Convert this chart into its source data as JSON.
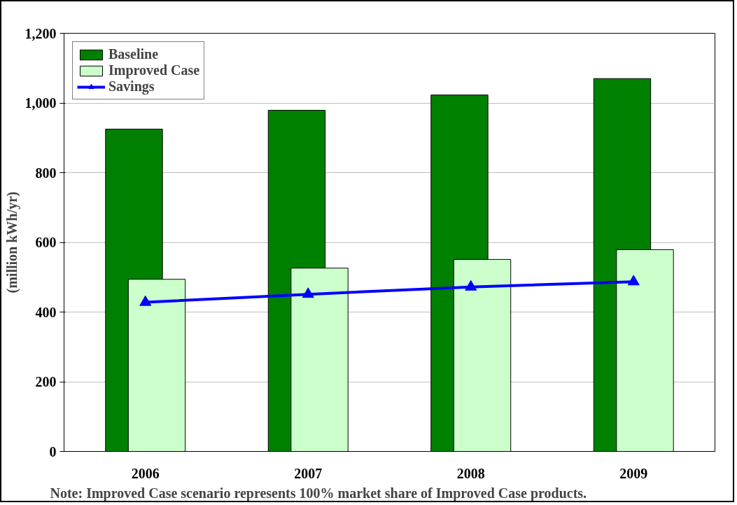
{
  "chart_data": {
    "type": "bar",
    "ylabel": "(million kWh/yr)",
    "categories": [
      "2006",
      "2007",
      "2008",
      "2009"
    ],
    "series": [
      {
        "name": "Baseline",
        "color": "#008000",
        "values": [
          925,
          979,
          1023,
          1070
        ]
      },
      {
        "name": "Improved Case",
        "color": "#ccffcc",
        "values": [
          494,
          526,
          551,
          579
        ]
      },
      {
        "name": "Savings",
        "type": "line",
        "color": "#0000ff",
        "marker": "triangle",
        "values": [
          428,
          451,
          472,
          487
        ]
      }
    ],
    "ylim": [
      0,
      1200
    ],
    "yticks": [
      {
        "value": 0,
        "label": "0"
      },
      {
        "value": 200,
        "label": "200"
      },
      {
        "value": 400,
        "label": "400"
      },
      {
        "value": 600,
        "label": "600"
      },
      {
        "value": 800,
        "label": "800"
      },
      {
        "value": 1000,
        "label": "1,000"
      },
      {
        "value": 1200,
        "label": "1,200"
      }
    ],
    "grid": "y",
    "legend": "top left",
    "annotations": [
      "Note: Improved Case scenario represents 100% market share of Improved Case products."
    ]
  }
}
